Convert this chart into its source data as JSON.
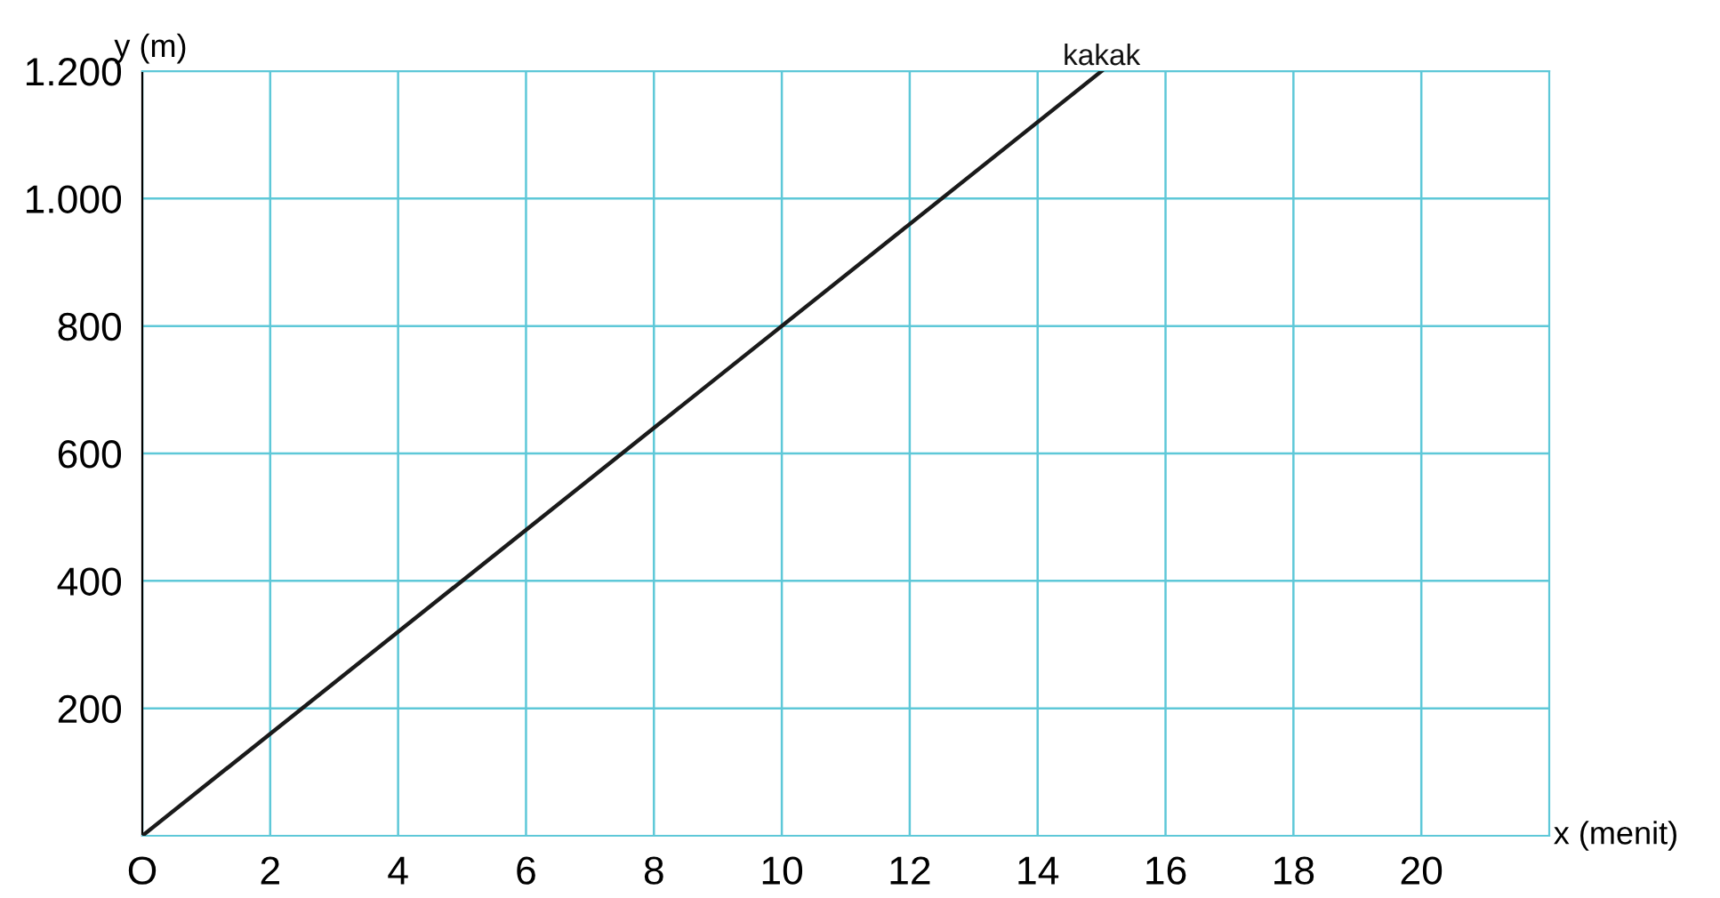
{
  "chart_data": {
    "type": "line",
    "xlabel": "x (menit)",
    "ylabel": "y (m)",
    "xlim": [
      0,
      22
    ],
    "ylim": [
      0,
      1200
    ],
    "xticks": [
      {
        "value": 0,
        "label": "O"
      },
      2,
      4,
      6,
      8,
      10,
      12,
      14,
      16,
      18,
      20
    ],
    "yticks": [
      200,
      {
        "value": 400,
        "label": "400"
      },
      600,
      800,
      {
        "value": 1000,
        "label": "1.000"
      },
      {
        "value": 1200,
        "label": "1.200"
      }
    ],
    "grid": true,
    "marker": "none",
    "line_style": "solid",
    "legend": false,
    "series": [
      {
        "name": "kakak",
        "color": "#1a1a1a",
        "x": [
          0,
          15
        ],
        "values": [
          0,
          1200
        ]
      }
    ]
  }
}
